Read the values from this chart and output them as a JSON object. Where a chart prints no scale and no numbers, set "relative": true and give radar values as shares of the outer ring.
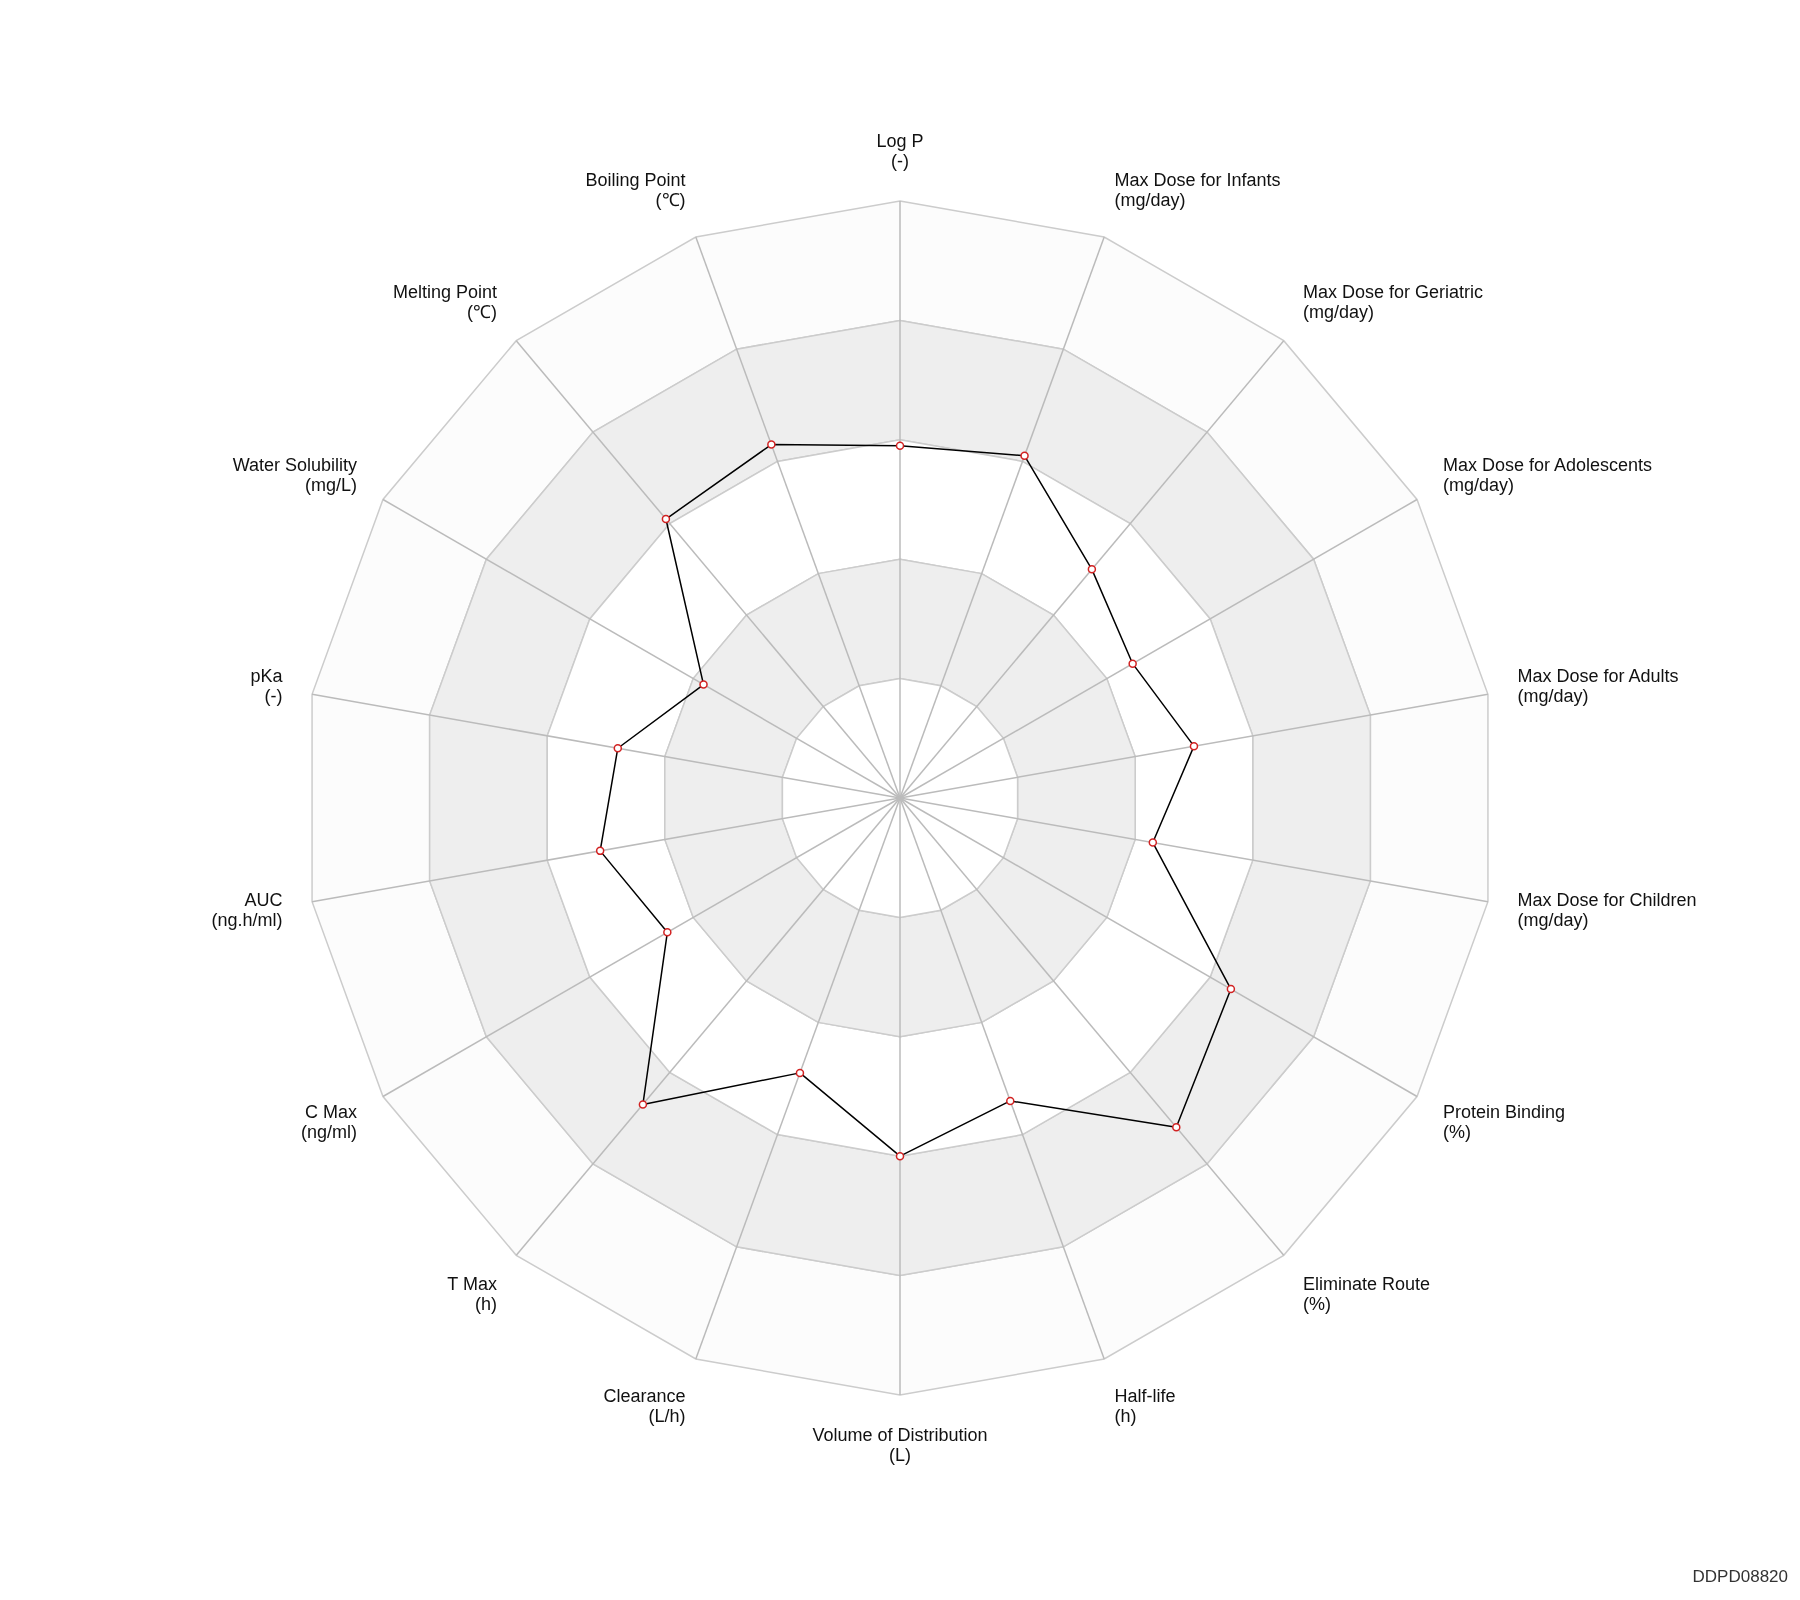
{
  "chart_data": {
    "type": "radar",
    "relative": true,
    "marker": "circle",
    "categories": [
      "Log P\n(-)",
      "Max Dose for Infants\n(mg/day)",
      "Max Dose for Geriatric\n(mg/day)",
      "Max Dose for Adolescents\n(mg/day)",
      "Max Dose for Adults\n(mg/day)",
      "Max Dose for Children\n(mg/day)",
      "Protein Binding\n(%)",
      "Eliminate Route\n(%)",
      "Half-life\n(h)",
      "Volume of Distribution\n(L)",
      "Clearance\n(L/h)",
      "T Max\n(h)",
      "C Max\n(ng/ml)",
      "AUC\n(ng.h/ml)",
      "pKa\n(-)",
      "Water Solubility\n(mg/L)",
      "Melting Point\n(℃)",
      "Boiling Point\n(℃)"
    ],
    "series": [
      {
        "color": "#000000",
        "values": [
          0.59,
          0.61,
          0.5,
          0.45,
          0.5,
          0.43,
          0.64,
          0.72,
          0.54,
          0.6,
          0.49,
          0.67,
          0.45,
          0.51,
          0.48,
          0.38,
          0.61,
          0.63
        ]
      }
    ],
    "annotations": [
      "DDPD08820"
    ]
  }
}
